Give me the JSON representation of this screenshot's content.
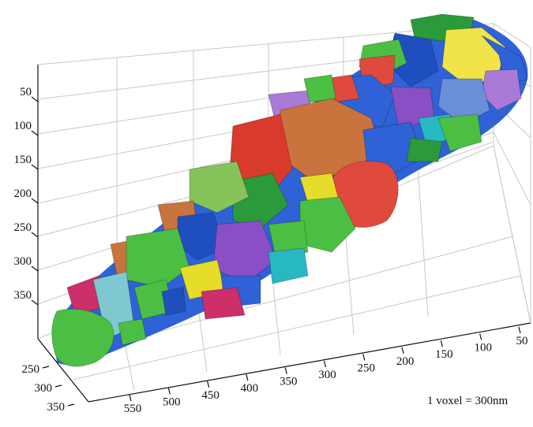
{
  "figure": {
    "scale_label": "1 voxel = 300nm"
  },
  "axes": {
    "z_ticks": [
      "50",
      "100",
      "150",
      "200",
      "250",
      "300",
      "350"
    ],
    "x_ticks": [
      "550",
      "500",
      "450",
      "400",
      "350",
      "300",
      "250",
      "200",
      "150",
      "100",
      "50"
    ],
    "y_ticks": [
      "250",
      "300",
      "350"
    ]
  },
  "colors": {
    "grain_palette": [
      "#2a9a3a",
      "#4bbf43",
      "#1f4fbf",
      "#2e62d6",
      "#d93a2e",
      "#e04a3c",
      "#c9733d",
      "#8a4fc4",
      "#a97ad6",
      "#e6dd2a",
      "#f0e44a",
      "#27b8c2",
      "#7ec9cf",
      "#cc2f6a",
      "#6a8fd8",
      "#86c35a"
    ]
  }
}
